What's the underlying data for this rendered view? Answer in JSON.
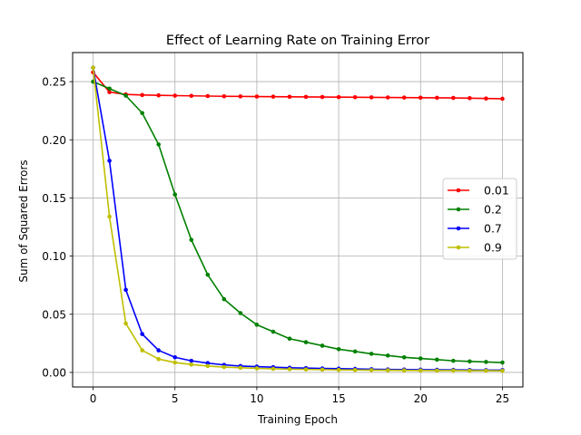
{
  "chart_data": {
    "type": "line",
    "title": "Effect of Learning Rate on Training Error",
    "xlabel": "Training Epoch",
    "ylabel": "Sum of Squared Errors",
    "xlim": [
      -1.25,
      26.25
    ],
    "ylim": [
      -0.0125,
      0.275
    ],
    "xticks": [
      0,
      5,
      10,
      15,
      20,
      25
    ],
    "yticks": [
      0.0,
      0.05,
      0.1,
      0.15,
      0.2,
      0.25
    ],
    "ytick_labels": [
      "0.00",
      "0.05",
      "0.10",
      "0.15",
      "0.20",
      "0.25"
    ],
    "grid": true,
    "legend_position": "center-right",
    "x": [
      0,
      1,
      2,
      3,
      4,
      5,
      6,
      7,
      8,
      9,
      10,
      11,
      12,
      13,
      14,
      15,
      16,
      17,
      18,
      19,
      20,
      21,
      22,
      23,
      24,
      25
    ],
    "series": [
      {
        "name": "0.01",
        "color": "#ff0000",
        "values": [
          0.258,
          0.241,
          0.239,
          0.2385,
          0.2382,
          0.238,
          0.2378,
          0.2376,
          0.2374,
          0.2373,
          0.2372,
          0.2371,
          0.237,
          0.2369,
          0.2368,
          0.2367,
          0.2366,
          0.2365,
          0.2364,
          0.2363,
          0.2362,
          0.2361,
          0.236,
          0.2358,
          0.2355,
          0.2353
        ]
      },
      {
        "name": "0.2",
        "color": "#008000",
        "values": [
          0.25,
          0.244,
          0.238,
          0.223,
          0.196,
          0.153,
          0.114,
          0.084,
          0.063,
          0.051,
          0.041,
          0.035,
          0.029,
          0.026,
          0.023,
          0.02,
          0.018,
          0.016,
          0.0145,
          0.013,
          0.012,
          0.011,
          0.01,
          0.0095,
          0.009,
          0.0085
        ]
      },
      {
        "name": "0.7",
        "color": "#0000ff",
        "values": [
          0.262,
          0.182,
          0.071,
          0.033,
          0.019,
          0.013,
          0.01,
          0.008,
          0.0065,
          0.0055,
          0.005,
          0.0045,
          0.004,
          0.0037,
          0.0034,
          0.0032,
          0.003,
          0.0028,
          0.0026,
          0.0025,
          0.0024,
          0.0023,
          0.0022,
          0.0021,
          0.002,
          0.002
        ]
      },
      {
        "name": "0.9",
        "color": "#bfbf00",
        "values": [
          0.262,
          0.134,
          0.042,
          0.019,
          0.0115,
          0.0085,
          0.0068,
          0.0055,
          0.0046,
          0.004,
          0.0035,
          0.0031,
          0.0028,
          0.0026,
          0.0024,
          0.0022,
          0.0021,
          0.002,
          0.0019,
          0.0018,
          0.0017,
          0.0016,
          0.0016,
          0.0015,
          0.0015,
          0.0014
        ]
      }
    ]
  }
}
